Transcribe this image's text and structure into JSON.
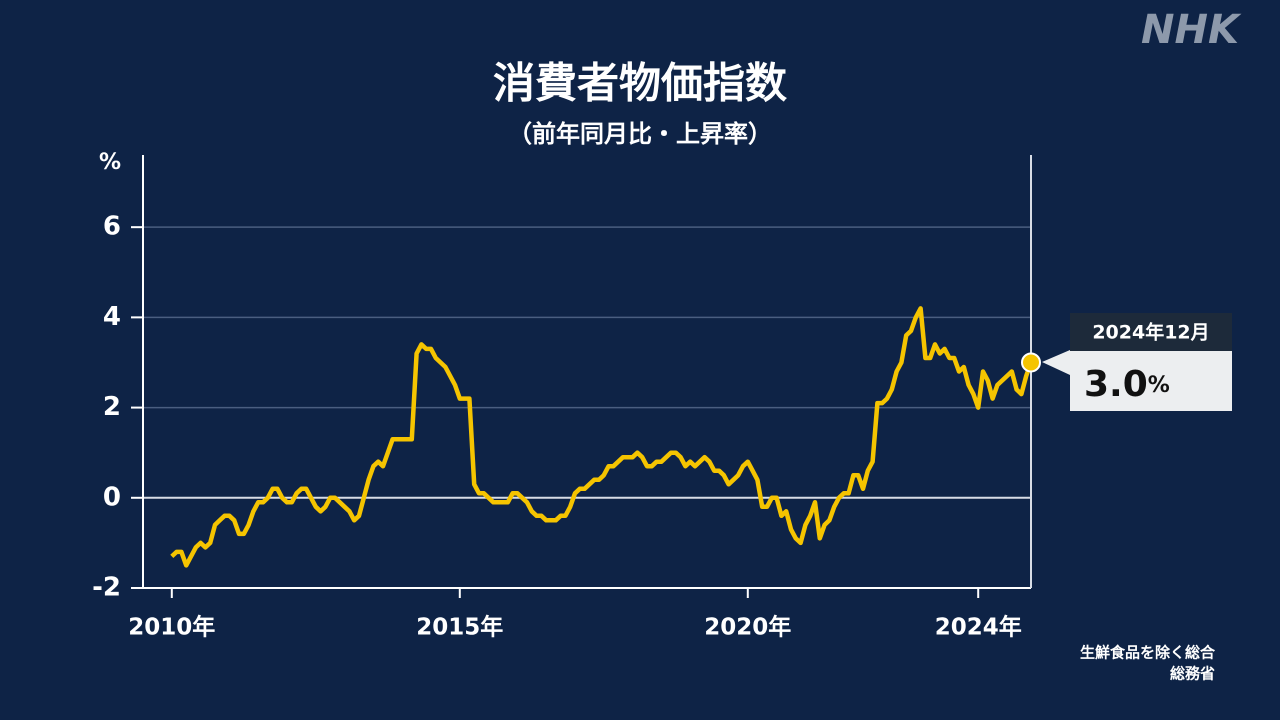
{
  "logo": "NHK",
  "chart_data": {
    "type": "line",
    "title": "消費者物価指数",
    "subtitle": "（前年同月比・上昇率）",
    "y_unit": "%",
    "notes": [
      "生鮮食品を除く総合",
      "総務省"
    ],
    "annotation": {
      "label": "2024年12月",
      "value": "3.0",
      "unit": "%"
    },
    "xlim": [
      "2009-07",
      "2024-12"
    ],
    "xticks": [
      {
        "value": "2010-01",
        "label": "2010年"
      },
      {
        "value": "2015-01",
        "label": "2015年"
      },
      {
        "value": "2020-01",
        "label": "2020年"
      },
      {
        "value": "2024-01",
        "label": "2024年"
      }
    ],
    "ylim": [
      -2,
      7.6
    ],
    "yticks": [
      -2,
      0,
      2,
      4,
      6
    ],
    "grid": true,
    "x": [
      "2010-01",
      "2010-02",
      "2010-03",
      "2010-04",
      "2010-05",
      "2010-06",
      "2010-07",
      "2010-08",
      "2010-09",
      "2010-10",
      "2010-11",
      "2010-12",
      "2011-01",
      "2011-02",
      "2011-03",
      "2011-04",
      "2011-05",
      "2011-06",
      "2011-07",
      "2011-08",
      "2011-09",
      "2011-10",
      "2011-11",
      "2011-12",
      "2012-01",
      "2012-02",
      "2012-03",
      "2012-04",
      "2012-05",
      "2012-06",
      "2012-07",
      "2012-08",
      "2012-09",
      "2012-10",
      "2012-11",
      "2012-12",
      "2013-01",
      "2013-02",
      "2013-03",
      "2013-04",
      "2013-05",
      "2013-06",
      "2013-07",
      "2013-08",
      "2013-09",
      "2013-10",
      "2013-11",
      "2013-12",
      "2014-01",
      "2014-02",
      "2014-03",
      "2014-04",
      "2014-05",
      "2014-06",
      "2014-07",
      "2014-08",
      "2014-09",
      "2014-10",
      "2014-11",
      "2014-12",
      "2015-01",
      "2015-02",
      "2015-03",
      "2015-04",
      "2015-05",
      "2015-06",
      "2015-07",
      "2015-08",
      "2015-09",
      "2015-10",
      "2015-11",
      "2015-12",
      "2016-01",
      "2016-02",
      "2016-03",
      "2016-04",
      "2016-05",
      "2016-06",
      "2016-07",
      "2016-08",
      "2016-09",
      "2016-10",
      "2016-11",
      "2016-12",
      "2017-01",
      "2017-02",
      "2017-03",
      "2017-04",
      "2017-05",
      "2017-06",
      "2017-07",
      "2017-08",
      "2017-09",
      "2017-10",
      "2017-11",
      "2017-12",
      "2018-01",
      "2018-02",
      "2018-03",
      "2018-04",
      "2018-05",
      "2018-06",
      "2018-07",
      "2018-08",
      "2018-09",
      "2018-10",
      "2018-11",
      "2018-12",
      "2019-01",
      "2019-02",
      "2019-03",
      "2019-04",
      "2019-05",
      "2019-06",
      "2019-07",
      "2019-08",
      "2019-09",
      "2019-10",
      "2019-11",
      "2019-12",
      "2020-01",
      "2020-02",
      "2020-03",
      "2020-04",
      "2020-05",
      "2020-06",
      "2020-07",
      "2020-08",
      "2020-09",
      "2020-10",
      "2020-11",
      "2020-12",
      "2021-01",
      "2021-02",
      "2021-03",
      "2021-04",
      "2021-05",
      "2021-06",
      "2021-07",
      "2021-08",
      "2021-09",
      "2021-10",
      "2021-11",
      "2021-12",
      "2022-01",
      "2022-02",
      "2022-03",
      "2022-04",
      "2022-05",
      "2022-06",
      "2022-07",
      "2022-08",
      "2022-09",
      "2022-10",
      "2022-11",
      "2022-12",
      "2023-01",
      "2023-02",
      "2023-03",
      "2023-04",
      "2023-05",
      "2023-06",
      "2023-07",
      "2023-08",
      "2023-09",
      "2023-10",
      "2023-11",
      "2023-12",
      "2024-01",
      "2024-02",
      "2024-03",
      "2024-04",
      "2024-05",
      "2024-06",
      "2024-07",
      "2024-08",
      "2024-09",
      "2024-10",
      "2024-11",
      "2024-12"
    ],
    "series": [
      {
        "color": "#f5c400",
        "values": [
          -1.3,
          -1.2,
          -1.2,
          -1.5,
          -1.3,
          -1.1,
          -1.0,
          -1.1,
          -1.0,
          -0.6,
          -0.5,
          -0.4,
          -0.4,
          -0.5,
          -0.8,
          -0.8,
          -0.6,
          -0.3,
          -0.1,
          -0.1,
          0.0,
          0.2,
          0.2,
          0.0,
          -0.1,
          -0.1,
          0.1,
          0.2,
          0.2,
          0.0,
          -0.2,
          -0.3,
          -0.2,
          0.0,
          0.0,
          -0.1,
          -0.2,
          -0.3,
          -0.5,
          -0.4,
          0.0,
          0.4,
          0.7,
          0.8,
          0.7,
          1.0,
          1.3,
          1.3,
          1.3,
          1.3,
          1.3,
          3.2,
          3.4,
          3.3,
          3.3,
          3.1,
          3.0,
          2.9,
          2.7,
          2.5,
          2.2,
          2.2,
          2.2,
          0.3,
          0.1,
          0.1,
          0.0,
          -0.1,
          -0.1,
          -0.1,
          -0.1,
          0.1,
          0.1,
          0.0,
          -0.1,
          -0.3,
          -0.4,
          -0.4,
          -0.5,
          -0.5,
          -0.5,
          -0.4,
          -0.4,
          -0.2,
          0.1,
          0.2,
          0.2,
          0.3,
          0.4,
          0.4,
          0.5,
          0.7,
          0.7,
          0.8,
          0.9,
          0.9,
          0.9,
          1.0,
          0.9,
          0.7,
          0.7,
          0.8,
          0.8,
          0.9,
          1.0,
          1.0,
          0.9,
          0.7,
          0.8,
          0.7,
          0.8,
          0.9,
          0.8,
          0.6,
          0.6,
          0.5,
          0.3,
          0.4,
          0.5,
          0.7,
          0.8,
          0.6,
          0.4,
          -0.2,
          -0.2,
          0.0,
          0.0,
          -0.4,
          -0.3,
          -0.7,
          -0.9,
          -1.0,
          -0.6,
          -0.4,
          -0.1,
          -0.9,
          -0.6,
          -0.5,
          -0.2,
          0.0,
          0.1,
          0.1,
          0.5,
          0.5,
          0.2,
          0.6,
          0.8,
          2.1,
          2.1,
          2.2,
          2.4,
          2.8,
          3.0,
          3.6,
          3.7,
          4.0,
          4.2,
          3.1,
          3.1,
          3.4,
          3.2,
          3.3,
          3.1,
          3.1,
          2.8,
          2.9,
          2.5,
          2.3,
          2.0,
          2.8,
          2.6,
          2.2,
          2.5,
          2.6,
          2.7,
          2.8,
          2.4,
          2.3,
          2.7,
          3.0
        ]
      }
    ]
  }
}
